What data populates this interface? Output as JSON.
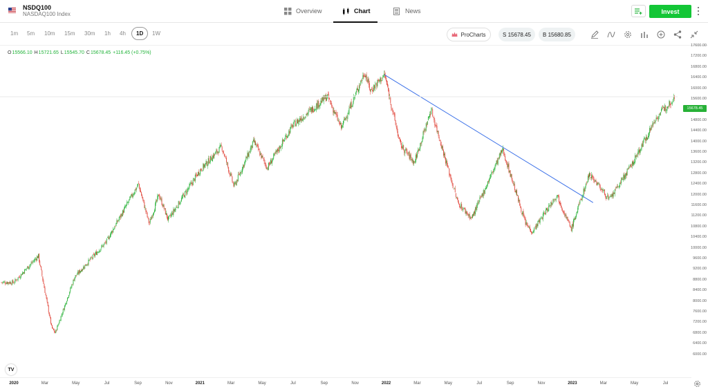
{
  "header": {
    "symbol": "NSDQ100",
    "name": "NASDAQ100 Index",
    "tabs": [
      {
        "label": "Overview",
        "icon": "grid-icon"
      },
      {
        "label": "Chart",
        "icon": "candles-icon"
      },
      {
        "label": "News",
        "icon": "news-icon"
      }
    ],
    "invest_label": "Invest"
  },
  "toolbar": {
    "timeframes": [
      "1m",
      "5m",
      "10m",
      "15m",
      "30m",
      "1h",
      "4h",
      "1D",
      "1W"
    ],
    "selected": "1D",
    "procharts_label": "ProCharts",
    "sell_label": "S 15678.45",
    "buy_label": "B 15680.85",
    "tool_icons": [
      "pencil-icon",
      "indicators-icon",
      "settings-icon",
      "chart-type-icon",
      "add-icon",
      "share-icon",
      "collapse-icon"
    ]
  },
  "ohlc": {
    "o_key": "O",
    "o": "15566.10",
    "h_key": "H",
    "h": "15721.65",
    "l_key": "L",
    "l": "15545.70",
    "c_key": "C",
    "c": "15678.45",
    "change": "+116.45 (+0.75%)"
  },
  "current_price_label": "15678.45",
  "colors": {
    "up": "#27b137",
    "down": "#e0453a",
    "trendline": "#3a70e8",
    "invest": "#13c636"
  },
  "chart_data": {
    "type": "candlestick",
    "y_ticks": [
      "17600.00",
      "17200.00",
      "16800.00",
      "16400.00",
      "16000.00",
      "15600.00",
      "15200.00",
      "14800.00",
      "14400.00",
      "14000.00",
      "13600.00",
      "13200.00",
      "12800.00",
      "12400.00",
      "12000.00",
      "11600.00",
      "11200.00",
      "10800.00",
      "10400.00",
      "10000.00",
      "9600.00",
      "9200.00",
      "8800.00",
      "8400.00",
      "8000.00",
      "7600.00",
      "7200.00",
      "6800.00",
      "6400.00",
      "6000.00"
    ],
    "ylim": [
      6000,
      17600
    ],
    "x_ticks": [
      {
        "label": "2020",
        "bold": true
      },
      {
        "label": "Mar",
        "bold": false
      },
      {
        "label": "May",
        "bold": false
      },
      {
        "label": "Jul",
        "bold": false
      },
      {
        "label": "Sep",
        "bold": false
      },
      {
        "label": "Nov",
        "bold": false
      },
      {
        "label": "2021",
        "bold": true
      },
      {
        "label": "Mar",
        "bold": false
      },
      {
        "label": "May",
        "bold": false
      },
      {
        "label": "Jul",
        "bold": false
      },
      {
        "label": "Sep",
        "bold": false
      },
      {
        "label": "Nov",
        "bold": false
      },
      {
        "label": "2022",
        "bold": true
      },
      {
        "label": "Mar",
        "bold": false
      },
      {
        "label": "May",
        "bold": false
      },
      {
        "label": "Jul",
        "bold": false
      },
      {
        "label": "Sep",
        "bold": false
      },
      {
        "label": "Nov",
        "bold": false
      },
      {
        "label": "2023",
        "bold": true
      },
      {
        "label": "Mar",
        "bold": false
      },
      {
        "label": "May",
        "bold": false
      },
      {
        "label": "Jul",
        "bold": false
      }
    ],
    "x_range": [
      "2020-01-02",
      "2023-07-19"
    ],
    "closes": [
      {
        "date": "2020-01-02",
        "value": 8700
      },
      {
        "date": "2020-02-19",
        "value": 9700
      },
      {
        "date": "2020-03-16",
        "value": 7000
      },
      {
        "date": "2020-03-23",
        "value": 6800
      },
      {
        "date": "2020-04-30",
        "value": 8900
      },
      {
        "date": "2020-06-30",
        "value": 10200
      },
      {
        "date": "2020-09-02",
        "value": 12400
      },
      {
        "date": "2020-09-23",
        "value": 10900
      },
      {
        "date": "2020-10-12",
        "value": 12000
      },
      {
        "date": "2020-10-30",
        "value": 11050
      },
      {
        "date": "2020-12-31",
        "value": 12900
      },
      {
        "date": "2021-02-12",
        "value": 13800
      },
      {
        "date": "2021-03-08",
        "value": 12300
      },
      {
        "date": "2021-04-16",
        "value": 14000
      },
      {
        "date": "2021-05-12",
        "value": 13000
      },
      {
        "date": "2021-07-01",
        "value": 14600
      },
      {
        "date": "2021-09-07",
        "value": 15700
      },
      {
        "date": "2021-10-04",
        "value": 14500
      },
      {
        "date": "2021-11-19",
        "value": 16600
      },
      {
        "date": "2021-11-30",
        "value": 15900
      },
      {
        "date": "2021-12-28",
        "value": 16500
      },
      {
        "date": "2022-01-27",
        "value": 13900
      },
      {
        "date": "2022-02-24",
        "value": 13200
      },
      {
        "date": "2022-03-29",
        "value": 15200
      },
      {
        "date": "2022-05-20",
        "value": 11700
      },
      {
        "date": "2022-06-16",
        "value": 11100
      },
      {
        "date": "2022-08-16",
        "value": 13700
      },
      {
        "date": "2022-09-30",
        "value": 10900
      },
      {
        "date": "2022-10-13",
        "value": 10600
      },
      {
        "date": "2022-11-30",
        "value": 12000
      },
      {
        "date": "2022-12-28",
        "value": 10700
      },
      {
        "date": "2023-02-02",
        "value": 12800
      },
      {
        "date": "2023-03-13",
        "value": 11800
      },
      {
        "date": "2023-04-28",
        "value": 13200
      },
      {
        "date": "2023-06-13",
        "value": 14900
      },
      {
        "date": "2023-07-19",
        "value": 15678
      }
    ],
    "trendline": [
      {
        "date": "2021-12-28",
        "value": 16500
      },
      {
        "date": "2023-02-09",
        "value": 11700
      }
    ]
  }
}
